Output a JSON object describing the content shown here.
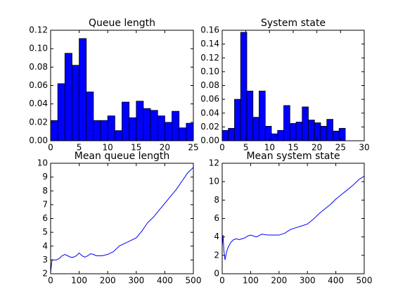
{
  "chart_data": [
    {
      "type": "histogram",
      "title": "Queue length",
      "color": "#0000ff",
      "bins": [
        0,
        1.25,
        2.5,
        3.75,
        5,
        6.25,
        7.5,
        8.75,
        10,
        11.25,
        12.5,
        13.75,
        15,
        16.25,
        17.5,
        18.75,
        20,
        21.25,
        22.5,
        23.75,
        25
      ],
      "values": [
        0.022,
        0.062,
        0.095,
        0.082,
        0.111,
        0.053,
        0.022,
        0.022,
        0.027,
        0.011,
        0.042,
        0.025,
        0.043,
        0.035,
        0.033,
        0.027,
        0.02,
        0.032,
        0.014,
        0.019
      ],
      "xlim": [
        0,
        25
      ],
      "xticks": [
        0,
        5,
        10,
        15,
        20,
        25
      ],
      "ylim": [
        0,
        0.12
      ],
      "yticks": [
        {
          "value": 0,
          "label": "0.00"
        },
        {
          "value": 0.02,
          "label": "0.02"
        },
        {
          "value": 0.04,
          "label": "0.04"
        },
        {
          "value": 0.06,
          "label": "0.06"
        },
        {
          "value": 0.08,
          "label": "0.08"
        },
        {
          "value": 0.1,
          "label": "0.10"
        },
        {
          "value": 0.12,
          "label": "0.12"
        }
      ]
    },
    {
      "type": "histogram",
      "title": "System state",
      "color": "#0000ff",
      "bins": [
        0,
        1.3,
        2.6,
        3.9,
        5.2,
        6.5,
        7.8,
        9.1,
        10.4,
        11.7,
        13,
        14.3,
        15.6,
        16.9,
        18.2,
        19.5,
        20.8,
        22.1,
        23.4,
        24.7,
        26
      ],
      "values": [
        0.015,
        0.018,
        0.06,
        0.157,
        0.072,
        0.034,
        0.072,
        0.021,
        0.01,
        0.015,
        0.051,
        0.025,
        0.027,
        0.049,
        0.03,
        0.026,
        0.021,
        0.031,
        0.014,
        0.018
      ],
      "xlim": [
        0,
        30
      ],
      "xticks": [
        0,
        5,
        10,
        15,
        20,
        25,
        30
      ],
      "ylim": [
        0,
        0.16
      ],
      "yticks": [
        {
          "value": 0,
          "label": "0.00"
        },
        {
          "value": 0.02,
          "label": "0.02"
        },
        {
          "value": 0.04,
          "label": "0.04"
        },
        {
          "value": 0.06,
          "label": "0.06"
        },
        {
          "value": 0.08,
          "label": "0.08"
        },
        {
          "value": 0.1,
          "label": "0.10"
        },
        {
          "value": 0.12,
          "label": "0.12"
        },
        {
          "value": 0.14,
          "label": "0.14"
        },
        {
          "value": 0.16,
          "label": "0.16"
        }
      ]
    },
    {
      "type": "line",
      "title": "Mean queue length",
      "color": "#0000ff",
      "x": [
        0,
        5,
        10,
        20,
        30,
        40,
        50,
        60,
        70,
        80,
        90,
        100,
        110,
        120,
        130,
        140,
        150,
        160,
        170,
        180,
        200,
        220,
        240,
        260,
        280,
        300,
        320,
        340,
        360,
        380,
        400,
        420,
        440,
        460,
        480,
        500
      ],
      "values": [
        2.1,
        3.0,
        3.0,
        3.0,
        3.1,
        3.3,
        3.4,
        3.3,
        3.2,
        3.2,
        3.3,
        3.5,
        3.3,
        3.2,
        3.3,
        3.45,
        3.4,
        3.3,
        3.3,
        3.3,
        3.4,
        3.6,
        4.0,
        4.2,
        4.4,
        4.6,
        5.1,
        5.7,
        6.1,
        6.6,
        7.1,
        7.6,
        8.1,
        8.7,
        9.3,
        9.7
      ],
      "xlim": [
        0,
        500
      ],
      "xticks": [
        0,
        100,
        200,
        300,
        400,
        500
      ],
      "ylim": [
        2,
        10
      ],
      "yticks": [
        2,
        3,
        4,
        5,
        6,
        7,
        8,
        9,
        10
      ]
    },
    {
      "type": "line",
      "title": "Mean system state",
      "color": "#0000ff",
      "x": [
        0,
        3,
        6,
        10,
        15,
        20,
        30,
        40,
        50,
        60,
        70,
        80,
        90,
        100,
        120,
        140,
        160,
        180,
        200,
        220,
        240,
        260,
        280,
        300,
        320,
        340,
        360,
        380,
        400,
        420,
        440,
        460,
        480,
        500
      ],
      "values": [
        3.0,
        4.2,
        2.5,
        1.5,
        2.3,
        2.8,
        3.4,
        3.7,
        3.8,
        3.7,
        3.8,
        3.9,
        4.1,
        4.2,
        4.0,
        4.3,
        4.2,
        4.2,
        4.2,
        4.4,
        4.8,
        5.0,
        5.2,
        5.4,
        5.9,
        6.5,
        7.0,
        7.5,
        8.1,
        8.6,
        9.1,
        9.6,
        10.2,
        10.6
      ],
      "xlim": [
        0,
        500
      ],
      "xticks": [
        0,
        100,
        200,
        300,
        400,
        500
      ],
      "ylim": [
        0,
        12
      ],
      "yticks": [
        0,
        2,
        4,
        6,
        8,
        10,
        12
      ]
    }
  ]
}
